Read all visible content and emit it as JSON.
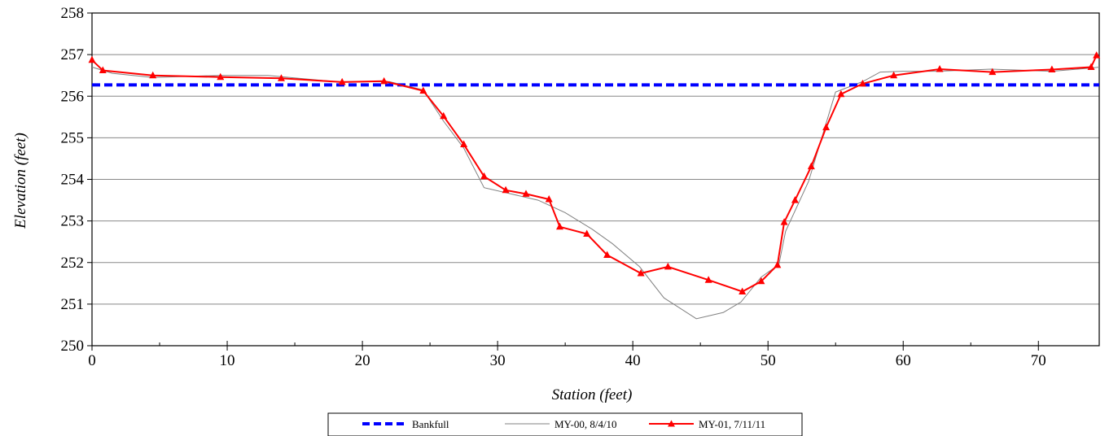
{
  "chart_data": {
    "type": "line",
    "title": "",
    "xlabel": "Station (feet)",
    "ylabel": "Elevation (feet)",
    "xlim": [
      0,
      74.5
    ],
    "ylim": [
      250,
      258
    ],
    "xticks": [
      0,
      10,
      20,
      30,
      40,
      50,
      60,
      70
    ],
    "yticks": [
      250,
      251,
      252,
      253,
      254,
      255,
      256,
      257,
      258
    ],
    "grid": "horizontal",
    "legend_position": "bottom-center",
    "series": [
      {
        "name": "Bankfull",
        "color": "#0000ff",
        "style": "dashed",
        "marker": "none",
        "x": [
          0,
          74.5
        ],
        "y": [
          256.27,
          256.27
        ]
      },
      {
        "name": "MY-00, 8/4/10",
        "color": "#808080",
        "style": "solid",
        "marker": "none",
        "x": [
          0,
          1.5,
          4.5,
          9.5,
          13,
          18,
          22,
          24.5,
          26,
          27.5,
          29,
          31,
          33,
          35,
          37,
          38.5,
          40.5,
          42.3,
          44.7,
          46.7,
          48,
          49.5,
          50.8,
          51.3,
          53,
          55,
          57,
          58.3,
          60,
          62.5,
          66.5,
          71,
          74,
          74.5
        ],
        "y": [
          256.7,
          256.55,
          256.45,
          256.5,
          256.5,
          256.35,
          256.35,
          256.15,
          255.4,
          254.75,
          253.8,
          253.65,
          253.5,
          253.2,
          252.8,
          252.45,
          251.9,
          251.15,
          250.65,
          250.8,
          251.05,
          251.65,
          251.95,
          252.75,
          253.95,
          256.1,
          256.35,
          256.58,
          256.6,
          256.6,
          256.65,
          256.6,
          256.68,
          256.7
        ]
      },
      {
        "name": "MY-01, 7/11/11",
        "color": "#ff0000",
        "style": "solid",
        "marker": "triangle",
        "x": [
          0,
          0.8,
          4.5,
          9.5,
          14.0,
          18.5,
          21.6,
          24.5,
          26.0,
          27.5,
          29.0,
          30.6,
          32.1,
          33.8,
          34.6,
          36.6,
          38.1,
          40.6,
          42.6,
          45.6,
          48.1,
          49.5,
          50.7,
          51.2,
          52.0,
          53.2,
          54.3,
          55.4,
          57.0,
          59.3,
          62.7,
          66.6,
          71.0,
          73.9,
          74.3
        ],
        "y": [
          256.87,
          256.62,
          256.5,
          256.46,
          256.43,
          256.34,
          256.36,
          256.13,
          255.52,
          254.84,
          254.07,
          253.74,
          253.65,
          253.52,
          252.86,
          252.69,
          252.18,
          251.74,
          251.9,
          251.58,
          251.3,
          251.55,
          251.94,
          252.97,
          253.5,
          254.31,
          255.25,
          256.05,
          256.3,
          256.5,
          256.65,
          256.58,
          256.64,
          256.7,
          256.98
        ]
      }
    ]
  }
}
